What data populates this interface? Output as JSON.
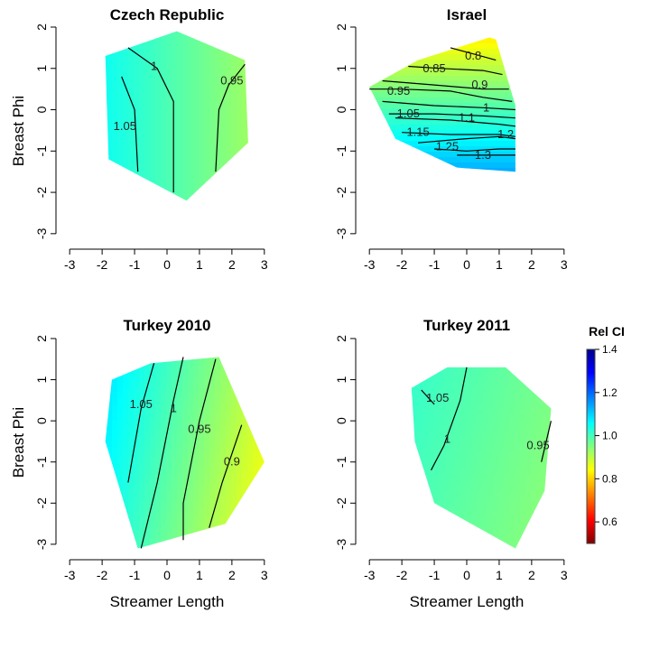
{
  "ylabel": "Breast Phi",
  "xlabel": "Streamer Length",
  "legend": {
    "title": "Rel CI",
    "ticks": [
      0.6,
      0.8,
      1.0,
      1.2,
      1.4
    ],
    "tick_labels": [
      "0.6",
      "0.8",
      "1.0",
      "1.2",
      "1.4"
    ],
    "range": [
      0.5,
      1.4
    ],
    "colors": [
      "#800000",
      "#ff0000",
      "#ff8000",
      "#ffff00",
      "#80ff80",
      "#00ffff",
      "#0080ff",
      "#0000ff",
      "#00008b"
    ]
  },
  "chart_data": [
    {
      "type": "contour",
      "title": "Czech Republic",
      "xlim": [
        -3.2,
        3.2
      ],
      "ylim": [
        -3.2,
        2
      ],
      "x_ticks": [
        -3,
        -2,
        -1,
        0,
        1,
        2,
        3
      ],
      "x_tick_labels": [
        "-3",
        "-2",
        "-1",
        "0",
        "1",
        "2",
        "3"
      ],
      "y_ticks": [
        -3,
        -2,
        -1,
        0,
        1,
        2
      ],
      "y_tick_labels": [
        "-3",
        "-2",
        "-1",
        "0",
        "1",
        "2"
      ],
      "region": [
        [
          -1.9,
          1.3
        ],
        [
          0.3,
          1.9
        ],
        [
          2.4,
          1.2
        ],
        [
          2.5,
          -0.8
        ],
        [
          0.6,
          -2.2
        ],
        [
          -1.8,
          -1.2
        ]
      ],
      "field": {
        "base": 1.0,
        "gx": -0.03,
        "gy": 0.0
      },
      "contours": [
        {
          "level": 1.05,
          "label": "1.05",
          "points": [
            [
              -1.4,
              0.8
            ],
            [
              -1.0,
              0.0
            ],
            [
              -0.9,
              -1.5
            ]
          ],
          "label_at": [
            -1.3,
            -0.4
          ]
        },
        {
          "level": 1,
          "label": "1",
          "points": [
            [
              -1.2,
              1.5
            ],
            [
              -0.3,
              1.0
            ],
            [
              0.2,
              0.2
            ],
            [
              0.2,
              -2.0
            ]
          ],
          "label_at": [
            -0.4,
            1.05
          ]
        },
        {
          "level": 0.95,
          "label": "0.95",
          "points": [
            [
              2.4,
              1.1
            ],
            [
              1.9,
              0.6
            ],
            [
              1.6,
              0.0
            ],
            [
              1.5,
              -1.5
            ]
          ],
          "label_at": [
            2.0,
            0.7
          ]
        }
      ]
    },
    {
      "type": "contour",
      "title": "Israel",
      "xlim": [
        -3.2,
        3.2
      ],
      "ylim": [
        -3.2,
        2
      ],
      "x_ticks": [
        -3,
        -2,
        -1,
        0,
        1,
        2,
        3
      ],
      "x_tick_labels": [
        "-3",
        "-2",
        "-1",
        "0",
        "1",
        "2",
        "3"
      ],
      "y_ticks": [
        -3,
        -2,
        -1,
        0,
        1,
        2
      ],
      "y_tick_labels": [
        "-3",
        "-2",
        "-1",
        "0",
        "1",
        "2"
      ],
      "region": [
        [
          -3.0,
          0.55
        ],
        [
          -1.5,
          1.2
        ],
        [
          0.7,
          1.75
        ],
        [
          0.9,
          1.7
        ],
        [
          1.5,
          0.1
        ],
        [
          1.5,
          -1.5
        ],
        [
          -0.3,
          -1.4
        ],
        [
          -2.2,
          -0.7
        ]
      ],
      "field": {
        "base": 1.0,
        "gx": 0.0,
        "gy": -0.1
      },
      "contours": [
        {
          "level": 0.8,
          "label": "0.8",
          "points": [
            [
              -0.5,
              1.5
            ],
            [
              0.2,
              1.35
            ],
            [
              0.9,
              1.2
            ]
          ],
          "label_at": [
            0.2,
            1.3
          ]
        },
        {
          "level": 0.85,
          "label": "0.85",
          "points": [
            [
              -1.8,
              1.05
            ],
            [
              -0.8,
              1.0
            ],
            [
              0.5,
              0.95
            ],
            [
              1.1,
              0.85
            ]
          ],
          "label_at": [
            -1.0,
            1.0
          ]
        },
        {
          "level": 0.9,
          "label": "0.9",
          "points": [
            [
              -2.6,
              0.7
            ],
            [
              -1.0,
              0.6
            ],
            [
              0.5,
              0.5
            ],
            [
              1.3,
              0.5
            ]
          ],
          "label_at": [
            0.4,
            0.6
          ]
        },
        {
          "level": 0.95,
          "label": "0.95",
          "points": [
            [
              -3.0,
              0.5
            ],
            [
              -2.0,
              0.5
            ],
            [
              -0.5,
              0.45
            ],
            [
              0.5,
              0.3
            ],
            [
              1.4,
              0.2
            ]
          ],
          "label_at": [
            -2.1,
            0.45
          ]
        },
        {
          "level": 1,
          "label": "1",
          "points": [
            [
              -2.6,
              0.2
            ],
            [
              -1.0,
              0.1
            ],
            [
              0.5,
              0.05
            ],
            [
              1.5,
              0.0
            ]
          ],
          "label_at": [
            0.6,
            0.05
          ]
        },
        {
          "level": 1.05,
          "label": "1.05",
          "points": [
            [
              -2.4,
              -0.1
            ],
            [
              -1.0,
              -0.1
            ],
            [
              0.5,
              -0.15
            ],
            [
              1.5,
              -0.2
            ]
          ],
          "label_at": [
            -1.8,
            -0.1
          ]
        },
        {
          "level": 1.1,
          "label": "1.1",
          "points": [
            [
              -2.2,
              -0.2
            ],
            [
              -0.5,
              -0.25
            ],
            [
              1.0,
              -0.35
            ],
            [
              1.5,
              -0.4
            ]
          ],
          "label_at": [
            0.0,
            -0.2
          ]
        },
        {
          "level": 1.15,
          "label": "1.15",
          "points": [
            [
              -2.0,
              -0.55
            ],
            [
              -0.5,
              -0.6
            ],
            [
              1.0,
              -0.6
            ],
            [
              1.5,
              -0.65
            ]
          ],
          "label_at": [
            -1.5,
            -0.55
          ]
        },
        {
          "level": 1.2,
          "label": "1.2",
          "points": [
            [
              -1.5,
              -0.8
            ],
            [
              0.0,
              -0.7
            ],
            [
              1.0,
              -0.65
            ],
            [
              1.5,
              -0.7
            ]
          ],
          "label_at": [
            1.2,
            -0.6
          ]
        },
        {
          "level": 1.25,
          "label": "1.25",
          "points": [
            [
              -1.0,
              -0.95
            ],
            [
              0.0,
              -1.0
            ],
            [
              1.0,
              -0.95
            ],
            [
              1.5,
              -0.95
            ]
          ],
          "label_at": [
            -0.6,
            -0.9
          ]
        },
        {
          "level": 1.3,
          "label": "1.3",
          "points": [
            [
              -0.3,
              -1.1
            ],
            [
              0.5,
              -1.1
            ],
            [
              1.5,
              -1.1
            ]
          ],
          "label_at": [
            0.5,
            -1.1
          ]
        }
      ]
    },
    {
      "type": "contour",
      "title": "Turkey 2010",
      "xlim": [
        -3.2,
        3.2
      ],
      "ylim": [
        -3.2,
        2
      ],
      "x_ticks": [
        -3,
        -2,
        -1,
        0,
        1,
        2,
        3
      ],
      "x_tick_labels": [
        "-3",
        "-2",
        "-1",
        "0",
        "1",
        "2",
        "3"
      ],
      "y_ticks": [
        -3,
        -2,
        -1,
        0,
        1,
        2
      ],
      "y_tick_labels": [
        "-3",
        "-2",
        "-1",
        "0",
        "1",
        "2"
      ],
      "region": [
        [
          -1.7,
          1.0
        ],
        [
          -0.5,
          1.4
        ],
        [
          1.6,
          1.55
        ],
        [
          3.0,
          -1.0
        ],
        [
          1.8,
          -2.5
        ],
        [
          -0.9,
          -3.1
        ],
        [
          -1.9,
          -0.5
        ]
      ],
      "field": {
        "base": 1.0,
        "gx": -0.045,
        "gy": 0.01
      },
      "contours": [
        {
          "level": 1.05,
          "label": "1.05",
          "points": [
            [
              -0.4,
              1.4
            ],
            [
              -0.8,
              0.3
            ],
            [
              -1.2,
              -1.5
            ]
          ],
          "label_at": [
            -0.8,
            0.4
          ]
        },
        {
          "level": 1,
          "label": "1",
          "points": [
            [
              0.5,
              1.55
            ],
            [
              0.2,
              0.5
            ],
            [
              -0.3,
              -1.5
            ],
            [
              -0.8,
              -3.1
            ]
          ],
          "label_at": [
            0.2,
            0.3
          ]
        },
        {
          "level": 0.95,
          "label": "0.95",
          "points": [
            [
              1.5,
              1.5
            ],
            [
              1.0,
              0.0
            ],
            [
              0.5,
              -2.0
            ],
            [
              0.5,
              -2.9
            ]
          ],
          "label_at": [
            1.0,
            -0.2
          ]
        },
        {
          "level": 0.9,
          "label": "0.9",
          "points": [
            [
              2.3,
              -0.1
            ],
            [
              1.7,
              -1.5
            ],
            [
              1.3,
              -2.6
            ]
          ],
          "label_at": [
            2.0,
            -1.0
          ]
        }
      ]
    },
    {
      "type": "contour",
      "title": "Turkey 2011",
      "xlim": [
        -3.2,
        3.2
      ],
      "ylim": [
        -3.2,
        2
      ],
      "x_ticks": [
        -3,
        -2,
        -1,
        0,
        1,
        2,
        3
      ],
      "x_tick_labels": [
        "-3",
        "-2",
        "-1",
        "0",
        "1",
        "2",
        "3"
      ],
      "y_ticks": [
        -3,
        -2,
        -1,
        0,
        1,
        2
      ],
      "y_tick_labels": [
        "-3",
        "-2",
        "-1",
        "0",
        "1",
        "2"
      ],
      "region": [
        [
          -1.7,
          0.8
        ],
        [
          -0.6,
          1.3
        ],
        [
          1.2,
          1.3
        ],
        [
          2.6,
          0.3
        ],
        [
          2.4,
          -1.7
        ],
        [
          1.5,
          -3.1
        ],
        [
          -1.0,
          -2.0
        ],
        [
          -1.6,
          -0.5
        ]
      ],
      "field": {
        "base": 0.99,
        "gx": -0.015,
        "gy": 0.005
      },
      "contours": [
        {
          "level": 1.05,
          "label": "1.05",
          "points": [
            [
              -1.4,
              0.75
            ],
            [
              -1.0,
              0.4
            ]
          ],
          "label_at": [
            -0.9,
            0.55
          ]
        },
        {
          "level": 1,
          "label": "1",
          "points": [
            [
              0.0,
              1.3
            ],
            [
              -0.2,
              0.5
            ],
            [
              -0.7,
              -0.6
            ],
            [
              -1.1,
              -1.2
            ]
          ],
          "label_at": [
            -0.6,
            -0.45
          ]
        },
        {
          "level": 0.95,
          "label": "0.95",
          "points": [
            [
              2.6,
              0.0
            ],
            [
              2.3,
              -1.0
            ]
          ],
          "label_at": [
            2.2,
            -0.6
          ]
        }
      ]
    }
  ]
}
